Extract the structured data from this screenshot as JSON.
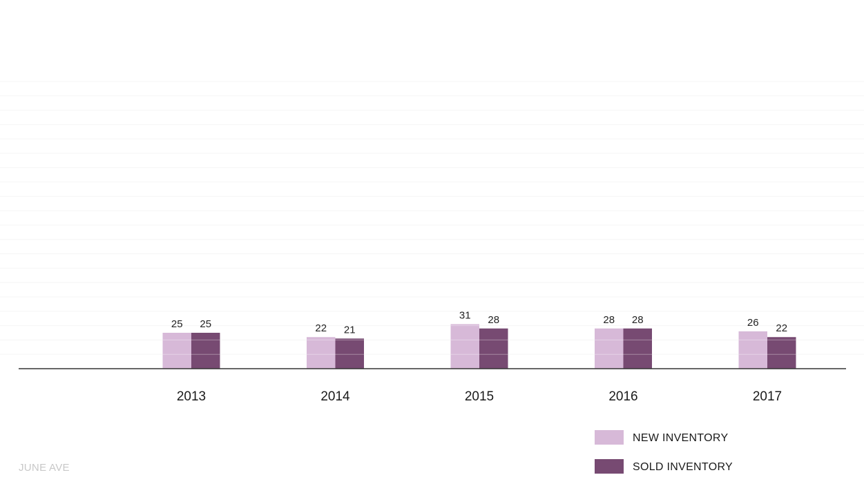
{
  "chart_data": {
    "type": "bar",
    "categories": [
      "2013",
      "2014",
      "2015",
      "2016",
      "2017"
    ],
    "series": [
      {
        "name": "NEW INVENTORY",
        "values": [
          25,
          22,
          31,
          28,
          26
        ],
        "color": "#d7b9d8"
      },
      {
        "name": "SOLD INVENTORY",
        "values": [
          25,
          21,
          28,
          28,
          22
        ],
        "color": "#774a72"
      }
    ],
    "title": "",
    "xlabel": "",
    "ylabel": "",
    "ylim": [
      0,
      200
    ],
    "grid": true,
    "data_labels": true,
    "legend_position": "bottom-right"
  },
  "legend": {
    "new_label": "NEW INVENTORY",
    "sold_label": "SOLD INVENTORY",
    "new_color": "#d7b9d8",
    "sold_color": "#774a72"
  },
  "brand": {
    "text": "JUNE AVE"
  }
}
